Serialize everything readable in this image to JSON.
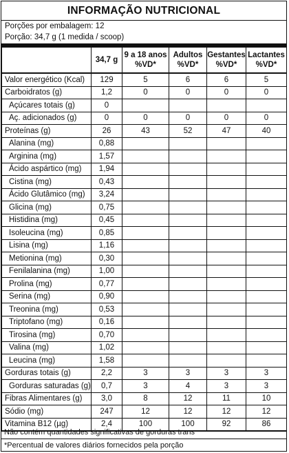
{
  "title": "INFORMAÇÃO NUTRICIONAL",
  "servings_per_package": "Porções por embalagem: 12",
  "serving_size": "Porção: 34,7 g (1 medida / scoop)",
  "headers": [
    "",
    "34,7 g",
    "9 a 18 anos\n%VD*",
    "Adultos\n%VD*",
    "Gestantes\n%VD*",
    "Lactantes\n%VD*"
  ],
  "rows": [
    {
      "label": "Valor energético (Kcal)",
      "indent": false,
      "cells": [
        "129",
        "5",
        "6",
        "6",
        "5"
      ]
    },
    {
      "label": "Carboidratos (g)",
      "indent": false,
      "cells": [
        "1,2",
        "0",
        "0",
        "0",
        "0"
      ]
    },
    {
      "label": "Açúcares totais (g)",
      "indent": true,
      "cells": [
        "0",
        "",
        "",
        "",
        ""
      ]
    },
    {
      "label": "Aç. adicionados (g)",
      "indent": true,
      "cells": [
        "0",
        "0",
        "0",
        "0",
        "0"
      ]
    },
    {
      "label": "Proteínas (g)",
      "indent": false,
      "cells": [
        "26",
        "43",
        "52",
        "47",
        "40"
      ]
    },
    {
      "label": "Alanina (mg)",
      "indent": true,
      "cells": [
        "0,88",
        "",
        "",
        "",
        ""
      ]
    },
    {
      "label": "Arginina (mg)",
      "indent": true,
      "cells": [
        "1,57",
        "",
        "",
        "",
        ""
      ]
    },
    {
      "label": "Ácido aspártico (mg)",
      "indent": true,
      "cells": [
        "1,94",
        "",
        "",
        "",
        ""
      ]
    },
    {
      "label": "Cistina (mg)",
      "indent": true,
      "cells": [
        "0,43",
        "",
        "",
        "",
        ""
      ]
    },
    {
      "label": "Ácido Glutâmico (mg)",
      "indent": true,
      "cells": [
        "3,24",
        "",
        "",
        "",
        ""
      ]
    },
    {
      "label": "Glicina (mg)",
      "indent": true,
      "cells": [
        "0,75",
        "",
        "",
        "",
        ""
      ]
    },
    {
      "label": "Histidina (mg)",
      "indent": true,
      "cells": [
        "0,45",
        "",
        "",
        "",
        ""
      ]
    },
    {
      "label": "Isoleucina (mg)",
      "indent": true,
      "cells": [
        "0,85",
        "",
        "",
        "",
        ""
      ]
    },
    {
      "label": "Lisina (mg)",
      "indent": true,
      "cells": [
        "1,16",
        "",
        "",
        "",
        ""
      ]
    },
    {
      "label": "Metionina (mg)",
      "indent": true,
      "cells": [
        "0,30",
        "",
        "",
        "",
        ""
      ]
    },
    {
      "label": "Fenilalanina (mg)",
      "indent": true,
      "cells": [
        "1,00",
        "",
        "",
        "",
        ""
      ]
    },
    {
      "label": "Prolina (mg)",
      "indent": true,
      "cells": [
        "0,77",
        "",
        "",
        "",
        ""
      ]
    },
    {
      "label": "Serina (mg)",
      "indent": true,
      "cells": [
        "0,90",
        "",
        "",
        "",
        ""
      ]
    },
    {
      "label": "Treonina (mg)",
      "indent": true,
      "cells": [
        "0,53",
        "",
        "",
        "",
        ""
      ]
    },
    {
      "label": "Triptofano (mg)",
      "indent": true,
      "cells": [
        "0,16",
        "",
        "",
        "",
        ""
      ]
    },
    {
      "label": "Tirosina (mg)",
      "indent": true,
      "cells": [
        "0,70",
        "",
        "",
        "",
        ""
      ]
    },
    {
      "label": "Valina (mg)",
      "indent": true,
      "cells": [
        "1,02",
        "",
        "",
        "",
        ""
      ]
    },
    {
      "label": "Leucina (mg)",
      "indent": true,
      "cells": [
        "1,58",
        "",
        "",
        "",
        ""
      ]
    },
    {
      "label": "Gorduras totais (g)",
      "indent": false,
      "cells": [
        "2,2",
        "3",
        "3",
        "3",
        "3"
      ]
    },
    {
      "label": "Gorduras saturadas (g)",
      "indent": true,
      "cells": [
        "0,7",
        "3",
        "4",
        "3",
        "3"
      ]
    },
    {
      "label": "Fibras Alimentares (g)",
      "indent": false,
      "cells": [
        "3,0",
        "8",
        "12",
        "11",
        "10"
      ]
    },
    {
      "label": "Sódio (mg)",
      "indent": false,
      "cells": [
        "247",
        "12",
        "12",
        "12",
        "12"
      ]
    },
    {
      "label": "Vitamina B12 (µg)",
      "indent": false,
      "cells": [
        "2,4",
        "100",
        "100",
        "92",
        "86"
      ]
    }
  ],
  "footer_note": "Não contém quantidades significativas de gorduras trans",
  "footer_vd": "*Percentual de valores diários fornecidos pela porção"
}
